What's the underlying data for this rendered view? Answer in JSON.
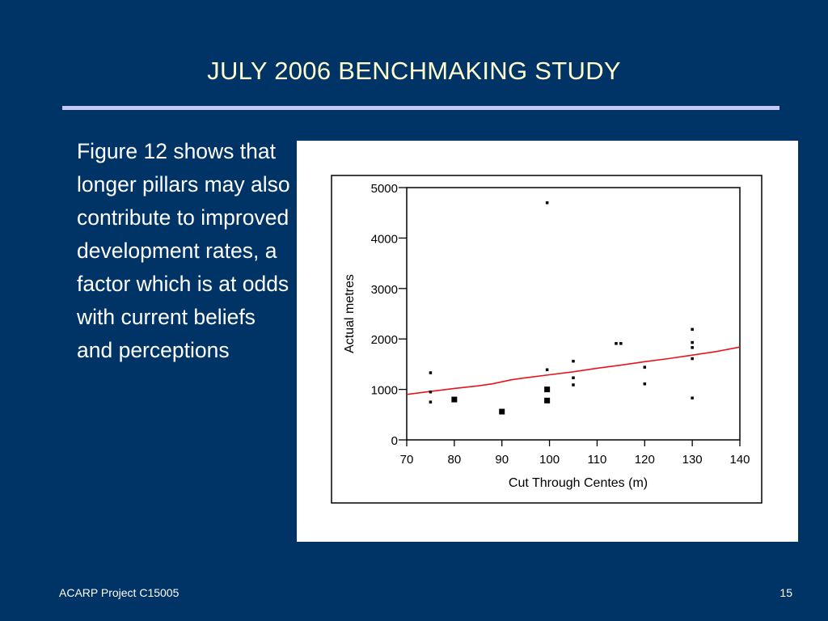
{
  "slide": {
    "title": "JULY 2006 BENCHMAKING STUDY",
    "body_text": "Figure 12 shows that longer pillars may also contribute to improved development rates, a factor which is at odds with current beliefs and perceptions",
    "footer_left": "ACARP Project C15005",
    "page_number": "15"
  },
  "colors": {
    "background": "#003366",
    "title": "#FFFFCC",
    "rule": "#C8C8F8",
    "trend_line": "#E8141B",
    "points": "#000000"
  },
  "chart_data": {
    "type": "scatter",
    "title": "",
    "xlabel": "Cut Through Centes (m)",
    "ylabel": "Actual metres",
    "xlim": [
      70,
      140
    ],
    "ylim": [
      0,
      5000
    ],
    "x_ticks": [
      70,
      80,
      90,
      100,
      110,
      120,
      130,
      140
    ],
    "y_ticks": [
      0,
      1000,
      2000,
      3000,
      4000,
      5000
    ],
    "grid": false,
    "points": [
      {
        "x": 75,
        "y": 1330,
        "size": "small"
      },
      {
        "x": 75,
        "y": 950,
        "size": "small"
      },
      {
        "x": 75,
        "y": 750,
        "size": "small"
      },
      {
        "x": 80,
        "y": 800,
        "size": "large"
      },
      {
        "x": 90,
        "y": 560,
        "size": "large"
      },
      {
        "x": 99.5,
        "y": 4700,
        "size": "small"
      },
      {
        "x": 99.5,
        "y": 1390,
        "size": "small"
      },
      {
        "x": 99.5,
        "y": 1000,
        "size": "large"
      },
      {
        "x": 99.5,
        "y": 780,
        "size": "large"
      },
      {
        "x": 105,
        "y": 1560,
        "size": "small"
      },
      {
        "x": 105,
        "y": 1230,
        "size": "small"
      },
      {
        "x": 105,
        "y": 1090,
        "size": "small"
      },
      {
        "x": 114,
        "y": 1910,
        "size": "small"
      },
      {
        "x": 115,
        "y": 1910,
        "size": "small"
      },
      {
        "x": 120,
        "y": 1440,
        "size": "small"
      },
      {
        "x": 120,
        "y": 1110,
        "size": "small"
      },
      {
        "x": 130,
        "y": 2190,
        "size": "small"
      },
      {
        "x": 130,
        "y": 1930,
        "size": "small"
      },
      {
        "x": 130,
        "y": 1830,
        "size": "small"
      },
      {
        "x": 130,
        "y": 1610,
        "size": "small"
      },
      {
        "x": 130,
        "y": 830,
        "size": "small"
      }
    ],
    "trend_line": [
      {
        "x": 70,
        "y": 900
      },
      {
        "x": 75,
        "y": 960
      },
      {
        "x": 80,
        "y": 1020
      },
      {
        "x": 85,
        "y": 1070
      },
      {
        "x": 88,
        "y": 1110
      },
      {
        "x": 90,
        "y": 1150
      },
      {
        "x": 92,
        "y": 1190
      },
      {
        "x": 95,
        "y": 1230
      },
      {
        "x": 100,
        "y": 1290
      },
      {
        "x": 105,
        "y": 1350
      },
      {
        "x": 110,
        "y": 1420
      },
      {
        "x": 115,
        "y": 1480
      },
      {
        "x": 120,
        "y": 1550
      },
      {
        "x": 125,
        "y": 1610
      },
      {
        "x": 130,
        "y": 1680
      },
      {
        "x": 135,
        "y": 1750
      },
      {
        "x": 140,
        "y": 1840
      }
    ]
  }
}
